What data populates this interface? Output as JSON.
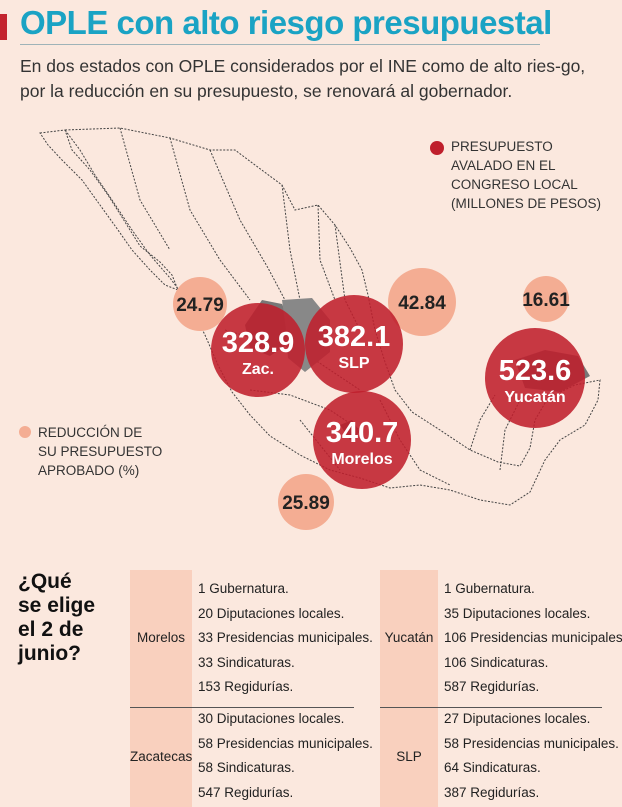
{
  "header": {
    "title": "OPLE con alto riesgo presupuestal",
    "subtitle": "En dos estados con OPLE considerados por el INE como de alto ries-go, por la reducción en su presupuesto, se renovará al gobernador."
  },
  "colors": {
    "accent": "#c3242f",
    "title": "#1aa3c4",
    "budget_circle": "#bf1f2c",
    "reduction_circle": "#f4ad93",
    "background": "#fbe8de",
    "panel": "#f9d0be"
  },
  "legend": {
    "budget": [
      "PRESUPUESTO",
      "AVALADO EN EL",
      "CONGRESO LOCAL",
      "(MILLONES DE PESOS)"
    ],
    "reduction": [
      "REDUCCIÓN DE",
      "SU PRESUPUESTO",
      "APROBADO (%)"
    ]
  },
  "map": {
    "states": [
      {
        "name": "Zac.",
        "budget": "328.9",
        "reduction": "24.79"
      },
      {
        "name": "SLP",
        "budget": "382.1",
        "reduction": "42.84"
      },
      {
        "name": "Morelos",
        "budget": "340.7",
        "reduction": "25.89"
      },
      {
        "name": "Yucatán",
        "budget": "523.6",
        "reduction": "16.61"
      }
    ]
  },
  "elections": {
    "question": [
      "¿Qué",
      "se elige",
      "el 2 de",
      "junio?"
    ],
    "entries": [
      {
        "state": "Morelos",
        "items": [
          "1 Gubernatura.",
          "20 Diputaciones locales.",
          "33 Presidencias municipales.",
          "33 Sindicaturas.",
          "153 Regidurías."
        ]
      },
      {
        "state": "Zacatecas",
        "items": [
          "30 Diputaciones locales.",
          "58 Presidencias municipales.",
          "58 Sindicaturas.",
          "547 Regidurías."
        ]
      },
      {
        "state": "Yucatán",
        "items": [
          "1 Gubernatura.",
          "35 Diputaciones locales.",
          "106 Presidencias municipales.",
          "106 Sindicaturas.",
          "587 Regidurías."
        ]
      },
      {
        "state": "SLP",
        "items": [
          "27 Diputaciones locales.",
          "58 Presidencias municipales.",
          "64 Sindicaturas.",
          "387 Regidurías."
        ]
      }
    ]
  }
}
